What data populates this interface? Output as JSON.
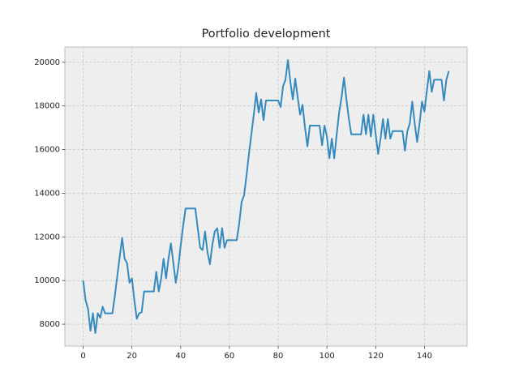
{
  "chart_data": {
    "type": "line",
    "title": "Portfolio development",
    "x": [
      0,
      1,
      2,
      3,
      4,
      5,
      6,
      7,
      8,
      9,
      10,
      11,
      12,
      13,
      14,
      15,
      16,
      17,
      18,
      19,
      20,
      21,
      22,
      23,
      24,
      25,
      26,
      27,
      28,
      29,
      30,
      31,
      32,
      33,
      34,
      35,
      36,
      37,
      38,
      39,
      40,
      41,
      42,
      43,
      44,
      45,
      46,
      47,
      48,
      49,
      50,
      51,
      52,
      53,
      54,
      55,
      56,
      57,
      58,
      59,
      60,
      61,
      62,
      63,
      64,
      65,
      66,
      67,
      68,
      69,
      70,
      71,
      72,
      73,
      74,
      75,
      76,
      77,
      78,
      79,
      80,
      81,
      82,
      83,
      84,
      85,
      86,
      87,
      88,
      89,
      90,
      91,
      92,
      93,
      94,
      95,
      96,
      97,
      98,
      99,
      100,
      101,
      102,
      103,
      104,
      105,
      106,
      107,
      108,
      109,
      110,
      111,
      112,
      113,
      114,
      115,
      116,
      117,
      118,
      119,
      120,
      121,
      122,
      123,
      124,
      125,
      126,
      127,
      128,
      129,
      130,
      131,
      132,
      133,
      134,
      135,
      136,
      137,
      138,
      139,
      140,
      141,
      142,
      143,
      144,
      145,
      146,
      147,
      148,
      149,
      150
    ],
    "values": [
      10000,
      9100,
      8700,
      7700,
      8500,
      7600,
      8500,
      8300,
      8800,
      8500,
      8500,
      8500,
      8500,
      9300,
      10200,
      11100,
      11950,
      11000,
      10800,
      9900,
      10100,
      9100,
      8250,
      8500,
      8550,
      9500,
      9500,
      9500,
      9500,
      9500,
      10400,
      9500,
      10100,
      11000,
      10100,
      11000,
      11700,
      10800,
      9900,
      10600,
      11600,
      12500,
      13300,
      13300,
      13300,
      13300,
      13300,
      12400,
      11500,
      11400,
      12250,
      11300,
      10750,
      11650,
      12250,
      12400,
      11500,
      12400,
      11500,
      11850,
      11850,
      11850,
      11850,
      11850,
      12600,
      13600,
      13900,
      14800,
      15800,
      16700,
      17600,
      18600,
      17700,
      18300,
      17350,
      18250,
      18250,
      18250,
      18250,
      18250,
      18250,
      17950,
      18900,
      19200,
      20100,
      19100,
      18300,
      19250,
      18400,
      17600,
      18050,
      17000,
      16150,
      17100,
      17100,
      17100,
      17100,
      17100,
      16200,
      17100,
      16600,
      15600,
      16500,
      15600,
      16700,
      17700,
      18400,
      19300,
      18300,
      17400,
      16700,
      16700,
      16700,
      16700,
      16700,
      17600,
      16700,
      17600,
      16600,
      17600,
      16700,
      15800,
      16500,
      17400,
      16500,
      17400,
      16500,
      16850,
      16850,
      16850,
      16850,
      16850,
      15950,
      16850,
      17200,
      18200,
      17200,
      16350,
      17200,
      18200,
      17750,
      18700,
      19600,
      18650,
      19200,
      19200,
      19200,
      19200,
      18250,
      19200,
      19600
    ],
    "color": "#348ABD",
    "xlim": [
      -7.5,
      157.5
    ],
    "xticks": [
      0,
      20,
      40,
      60,
      80,
      100,
      120,
      140
    ],
    "ylim": [
      7000,
      20700
    ],
    "yticks": [
      8000,
      10000,
      12000,
      14000,
      16000,
      18000,
      20000
    ],
    "grid": true
  }
}
